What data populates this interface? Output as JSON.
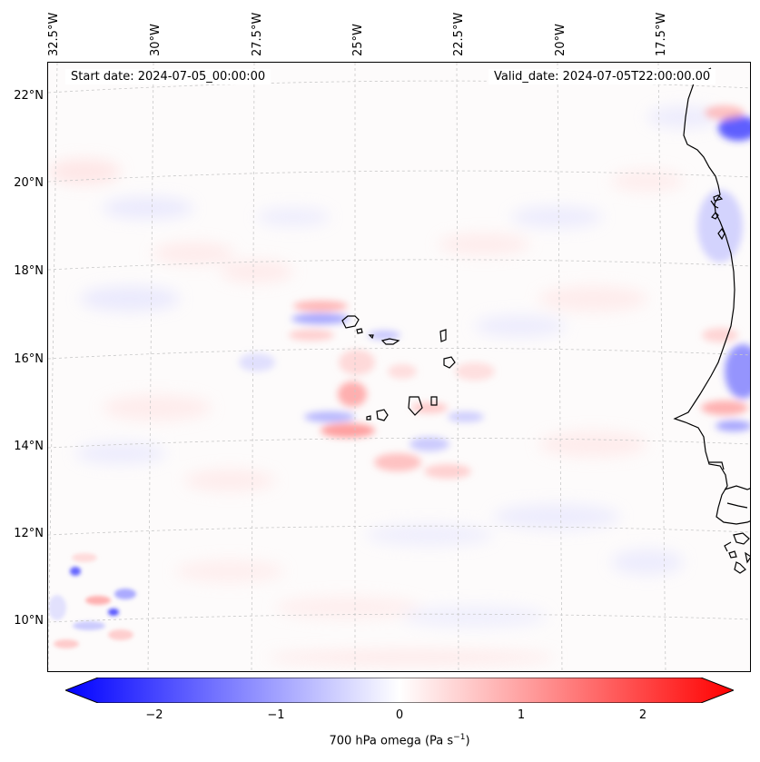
{
  "map": {
    "lon_labels": [
      "32.5°W",
      "30°W",
      "27.5°W",
      "25°W",
      "22.5°W",
      "20°W",
      "17.5°W"
    ],
    "lat_labels": [
      "22°N",
      "20°N",
      "18°N",
      "16°N",
      "14°N",
      "12°N",
      "10°N"
    ],
    "start_date": "Start date: 2024-07-05_00:00:00",
    "valid_date": "Valid_date: 2024-07-05T22:00:00.00",
    "field": "700 hPa omega",
    "colormap": "bwr",
    "colors": {
      "negative": "#0000ff",
      "zero": "#ffffff",
      "positive": "#ff0000",
      "coastline": "#000000",
      "gridline": "#c8c8c8"
    }
  },
  "colorbar": {
    "ticks": [
      "−2",
      "−1",
      "0",
      "1",
      "2"
    ],
    "label": "700 hPa omega (Pa s",
    "label_exp": "−1",
    "label_close": ")",
    "range": [
      -2.7,
      2.7
    ],
    "extend": "both"
  }
}
